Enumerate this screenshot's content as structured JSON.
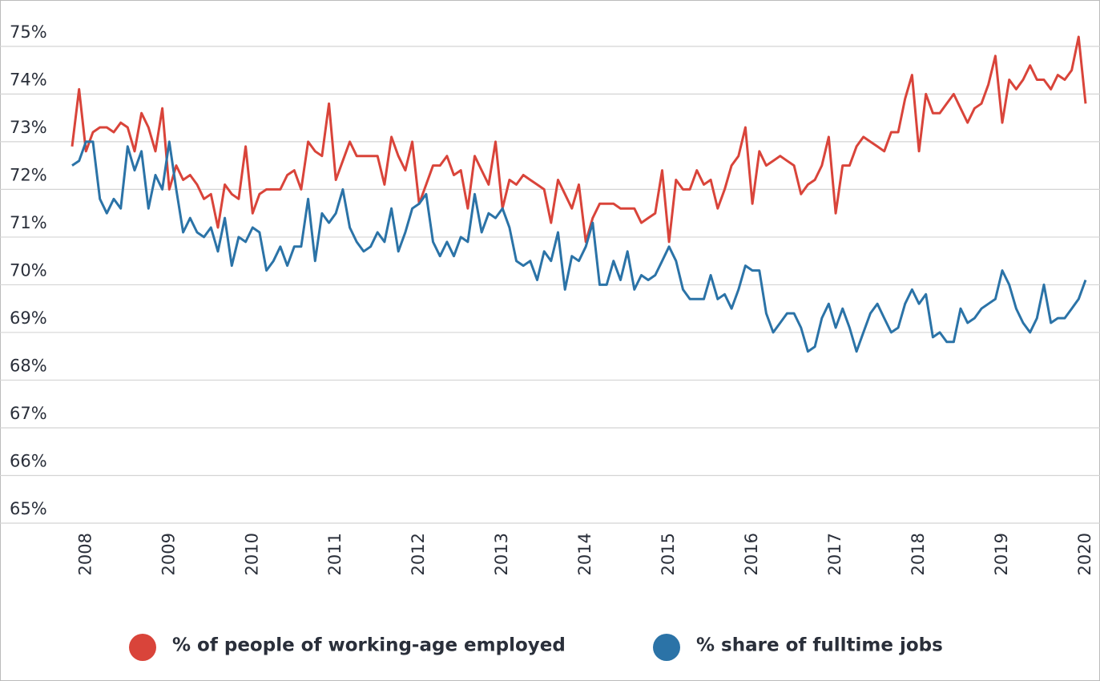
{
  "chart_data": {
    "type": "line",
    "categories": [
      null,
      null,
      "2008",
      null,
      null,
      null,
      null,
      null,
      null,
      null,
      null,
      null,
      null,
      null,
      "2009",
      null,
      null,
      null,
      null,
      null,
      null,
      null,
      null,
      null,
      null,
      null,
      "2010",
      null,
      null,
      null,
      null,
      null,
      null,
      null,
      null,
      null,
      null,
      null,
      "2011",
      null,
      null,
      null,
      null,
      null,
      null,
      null,
      null,
      null,
      null,
      null,
      "2012",
      null,
      null,
      null,
      null,
      null,
      null,
      null,
      null,
      null,
      null,
      null,
      "2013",
      null,
      null,
      null,
      null,
      null,
      null,
      null,
      null,
      null,
      null,
      null,
      "2014",
      null,
      null,
      null,
      null,
      null,
      null,
      null,
      null,
      null,
      null,
      null,
      "2015",
      null,
      null,
      null,
      null,
      null,
      null,
      null,
      null,
      null,
      null,
      null,
      "2016",
      null,
      null,
      null,
      null,
      null,
      null,
      null,
      null,
      null,
      null,
      null,
      "2017",
      null,
      null,
      null,
      null,
      null,
      null,
      null,
      null,
      null,
      null,
      null,
      "2018",
      null,
      null,
      null,
      null,
      null,
      null,
      null,
      null,
      null,
      null,
      null,
      "2019",
      null,
      null,
      null,
      null,
      null,
      null,
      null,
      null,
      null,
      null,
      null,
      "2020"
    ],
    "series": [
      {
        "name": "% of people of working-age employed",
        "color": "#d9443a",
        "values": [
          72.9,
          74.1,
          72.8,
          73.2,
          73.3,
          73.3,
          73.2,
          73.4,
          73.3,
          72.8,
          73.6,
          73.3,
          72.8,
          73.7,
          72.0,
          72.5,
          72.2,
          72.3,
          72.1,
          71.8,
          71.9,
          71.2,
          72.1,
          71.9,
          71.8,
          72.9,
          71.5,
          71.9,
          72.0,
          72.0,
          72.0,
          72.3,
          72.4,
          72.0,
          73.0,
          72.8,
          72.7,
          73.8,
          72.2,
          72.6,
          73.0,
          72.7,
          72.7,
          72.7,
          72.7,
          72.1,
          73.1,
          72.7,
          72.4,
          73.0,
          71.7,
          72.1,
          72.5,
          72.5,
          72.7,
          72.3,
          72.4,
          71.6,
          72.7,
          72.4,
          72.1,
          73.0,
          71.6,
          72.2,
          72.1,
          72.3,
          72.2,
          72.1,
          72.0,
          71.3,
          72.2,
          71.9,
          71.6,
          72.1,
          70.9,
          71.4,
          71.7,
          71.7,
          71.7,
          71.6,
          71.6,
          71.6,
          71.3,
          71.4,
          71.5,
          72.4,
          70.9,
          72.2,
          72.0,
          72.0,
          72.4,
          72.1,
          72.2,
          71.6,
          72.0,
          72.5,
          72.7,
          73.3,
          71.7,
          72.8,
          72.5,
          72.6,
          72.7,
          72.6,
          72.5,
          71.9,
          72.1,
          72.2,
          72.5,
          73.1,
          71.5,
          72.5,
          72.5,
          72.9,
          73.1,
          73.0,
          72.9,
          72.8,
          73.2,
          73.2,
          73.9,
          74.4,
          72.8,
          74.0,
          73.6,
          73.6,
          73.8,
          74.0,
          73.7,
          73.4,
          73.7,
          73.8,
          74.2,
          74.8,
          73.4,
          74.3,
          74.1,
          74.3,
          74.6,
          74.3,
          74.3,
          74.1,
          74.4,
          74.3,
          74.5,
          75.2,
          73.8
        ]
      },
      {
        "name": "% share of fulltime jobs",
        "color": "#2b73a7",
        "values": [
          72.5,
          72.6,
          73.0,
          73.0,
          71.8,
          71.5,
          71.8,
          71.6,
          72.9,
          72.4,
          72.8,
          71.6,
          72.3,
          72.0,
          73.0,
          72.0,
          71.1,
          71.4,
          71.1,
          71.0,
          71.2,
          70.7,
          71.4,
          70.4,
          71.0,
          70.9,
          71.2,
          71.1,
          70.3,
          70.5,
          70.8,
          70.4,
          70.8,
          70.8,
          71.8,
          70.5,
          71.5,
          71.3,
          71.5,
          72.0,
          71.2,
          70.9,
          70.7,
          70.8,
          71.1,
          70.9,
          71.6,
          70.7,
          71.1,
          71.6,
          71.7,
          71.9,
          70.9,
          70.6,
          70.9,
          70.6,
          71.0,
          70.9,
          71.9,
          71.1,
          71.5,
          71.4,
          71.6,
          71.2,
          70.5,
          70.4,
          70.5,
          70.1,
          70.7,
          70.5,
          71.1,
          69.9,
          70.6,
          70.5,
          70.8,
          71.3,
          70.0,
          70.0,
          70.5,
          70.1,
          70.7,
          69.9,
          70.2,
          70.1,
          70.2,
          70.5,
          70.8,
          70.5,
          69.9,
          69.7,
          69.7,
          69.7,
          70.2,
          69.7,
          69.8,
          69.5,
          69.9,
          70.4,
          70.3,
          70.3,
          69.4,
          69.0,
          69.2,
          69.4,
          69.4,
          69.1,
          68.6,
          68.7,
          69.3,
          69.6,
          69.1,
          69.5,
          69.1,
          68.6,
          69.0,
          69.4,
          69.6,
          69.3,
          69.0,
          69.1,
          69.6,
          69.9,
          69.6,
          69.8,
          68.9,
          69.0,
          68.8,
          68.8,
          69.5,
          69.2,
          69.3,
          69.5,
          69.6,
          69.7,
          70.3,
          70.0,
          69.5,
          69.2,
          69.0,
          69.3,
          70.0,
          69.2,
          69.3,
          69.3,
          69.5,
          69.7,
          70.1
        ]
      }
    ],
    "ylim": [
      65,
      75.3
    ],
    "yticks": [
      {
        "value": 65,
        "label": "65%"
      },
      {
        "value": 66,
        "label": "66%"
      },
      {
        "value": 67,
        "label": "67%"
      },
      {
        "value": 68,
        "label": "68%"
      },
      {
        "value": 69,
        "label": "69%"
      },
      {
        "value": 70,
        "label": "70%"
      },
      {
        "value": 71,
        "label": "71%"
      },
      {
        "value": 72,
        "label": "72%"
      },
      {
        "value": 73,
        "label": "73%"
      },
      {
        "value": 74,
        "label": "74%"
      },
      {
        "value": 75,
        "label": "75%"
      }
    ],
    "grid": true
  }
}
